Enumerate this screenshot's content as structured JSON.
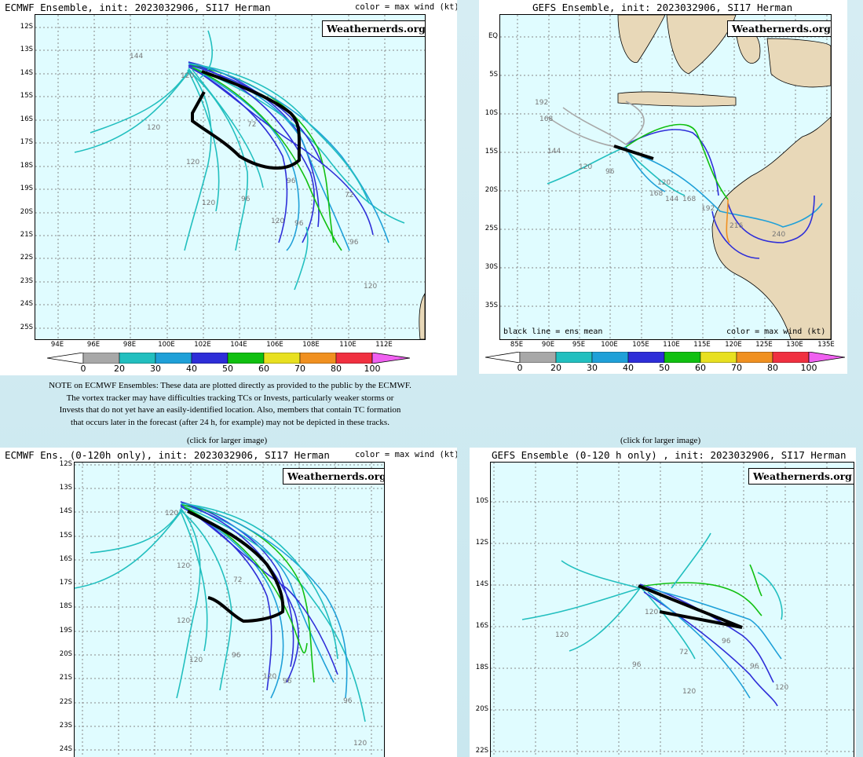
{
  "panels": {
    "p1": {
      "title": "ECMWF Ensemble, init: 2023032906, SI17 Herman",
      "color_note": "color = max wind (kt)",
      "brand": "Weathernerds.org",
      "lats": [
        "12S",
        "13S",
        "14S",
        "15S",
        "16S",
        "17S",
        "18S",
        "19S",
        "20S",
        "21S",
        "22S",
        "23S",
        "24S",
        "25S"
      ],
      "lons": [
        "94E",
        "96E",
        "98E",
        "100E",
        "102E",
        "104E",
        "106E",
        "108E",
        "110E",
        "112E"
      ]
    },
    "p2": {
      "title": "GEFS Ensemble, init: 2023032906, SI17 Herman",
      "brand": "Weathernerds.org",
      "mean_note": "black line = ens mean",
      "color_note": "color = max wind (kt)",
      "lats": [
        "EQ",
        "5S",
        "10S",
        "15S",
        "20S",
        "25S",
        "30S",
        "35S"
      ],
      "lons": [
        "85E",
        "90E",
        "95E",
        "100E",
        "105E",
        "110E",
        "115E",
        "120E",
        "125E",
        "130E",
        "135E"
      ]
    },
    "p3": {
      "title": "ECMWF Ens. (0-120h only), init: 2023032906, SI17 Herman",
      "color_note": "color = max wind (kt)",
      "brand": "Weathernerds.org",
      "lats": [
        "12S",
        "13S",
        "14S",
        "15S",
        "16S",
        "17S",
        "18S",
        "19S",
        "20S",
        "21S",
        "22S",
        "23S",
        "24S"
      ]
    },
    "p4": {
      "title": "GEFS Ensemble (0-120 h only) , init: 2023032906, SI17 Herman",
      "brand": "Weathernerds.org",
      "lats": [
        "10S",
        "12S",
        "14S",
        "16S",
        "18S",
        "20S",
        "22S"
      ]
    }
  },
  "colorbar": {
    "labels": [
      "0",
      "20",
      "30",
      "40",
      "50",
      "60",
      "70",
      "80",
      "100"
    ],
    "colors": [
      "#a8a8a8",
      "#22bfbf",
      "#1fa0d8",
      "#2e2ed8",
      "#10c010",
      "#e8e020",
      "#f09020",
      "#f03040",
      "#e01080",
      "#f060f0"
    ]
  },
  "note": {
    "lines": [
      "NOTE on ECMWF Ensembles: These data are plotted directly as provided to the public by the ECMWF.",
      "The vortex tracker may have difficulties tracking TCs or Invests, particularly weaker storms or",
      "Invests that do not yet have an easily-identified location. Also, members that contain TC formation",
      "that occurs later in the forecast (after 24 h, for example) may not be depicted in these tracks."
    ]
  },
  "click_left": "(click for larger image)",
  "click_right": "(click for larger image)",
  "hour_labels": {
    "p1": [
      "144",
      "120",
      "120",
      "120",
      "120",
      "96",
      "120",
      "96",
      "72",
      "96",
      "120",
      "72",
      "96"
    ],
    "p2": [
      "192",
      "168",
      "144",
      "120",
      "96",
      "120",
      "168",
      "144",
      "168",
      "192",
      "216",
      "240"
    ],
    "p3": [
      "120",
      "120",
      "120",
      "120",
      "96",
      "120",
      "72",
      "96",
      "96",
      "120"
    ],
    "p4": [
      "120",
      "96",
      "120",
      "96",
      "120",
      "72",
      "96",
      "120"
    ]
  }
}
